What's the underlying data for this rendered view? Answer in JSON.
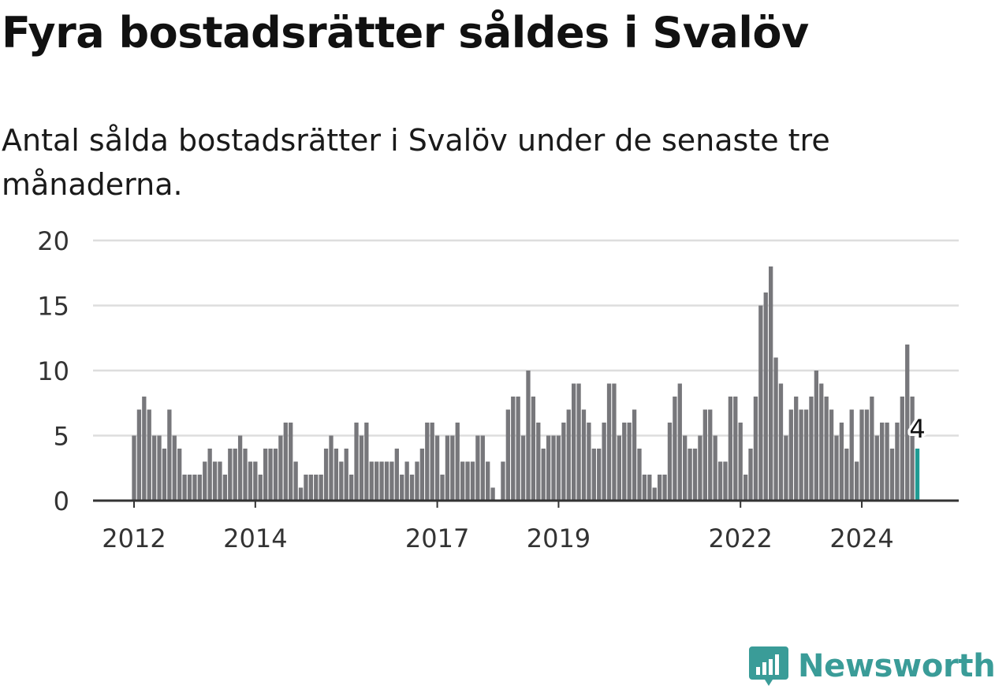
{
  "title": "Fyra bostadsrätter såldes i Svalöv",
  "subtitle": "Antal sålda bostadsrätter i Svalöv under de senaste tre månaderna.",
  "brand": {
    "name": "Newsworthy",
    "icon": "newsworthy-logo-icon",
    "color": "#3a9c98"
  },
  "colors": {
    "bar": "#77777b",
    "highlight": "#1f9b93",
    "grid": "#dddddd",
    "axis": "#333333"
  },
  "chart_data": {
    "type": "bar",
    "ylim": [
      0,
      20
    ],
    "yticks": [
      0,
      5,
      10,
      15,
      20
    ],
    "xticks": [
      {
        "label": "2012",
        "index": 0
      },
      {
        "label": "2014",
        "index": 24
      },
      {
        "label": "2017",
        "index": 60
      },
      {
        "label": "2019",
        "index": 84
      },
      {
        "label": "2022",
        "index": 120
      },
      {
        "label": "2024",
        "index": 144
      }
    ],
    "values": [
      5,
      7,
      8,
      7,
      5,
      5,
      4,
      7,
      5,
      4,
      2,
      2,
      2,
      2,
      3,
      4,
      3,
      3,
      2,
      4,
      4,
      5,
      4,
      3,
      3,
      2,
      4,
      4,
      4,
      5,
      6,
      6,
      3,
      1,
      2,
      2,
      2,
      2,
      4,
      5,
      4,
      3,
      4,
      2,
      6,
      5,
      6,
      3,
      3,
      3,
      3,
      3,
      4,
      2,
      3,
      2,
      3,
      4,
      6,
      6,
      5,
      2,
      5,
      5,
      6,
      3,
      3,
      3,
      5,
      5,
      3,
      1,
      0,
      3,
      7,
      8,
      8,
      5,
      10,
      8,
      6,
      4,
      5,
      5,
      5,
      6,
      7,
      9,
      9,
      7,
      6,
      4,
      4,
      6,
      9,
      9,
      5,
      6,
      6,
      7,
      4,
      2,
      2,
      1,
      2,
      2,
      6,
      8,
      9,
      5,
      4,
      4,
      5,
      7,
      7,
      5,
      3,
      3,
      8,
      8,
      6,
      2,
      4,
      8,
      15,
      16,
      18,
      11,
      9,
      5,
      7,
      8,
      7,
      7,
      8,
      10,
      9,
      8,
      7,
      5,
      6,
      4,
      7,
      3,
      7,
      7,
      8,
      5,
      6,
      6,
      4,
      6,
      8,
      12,
      8,
      4
    ],
    "highlight_last": true,
    "annotation": {
      "label": "4",
      "index": 155
    }
  }
}
